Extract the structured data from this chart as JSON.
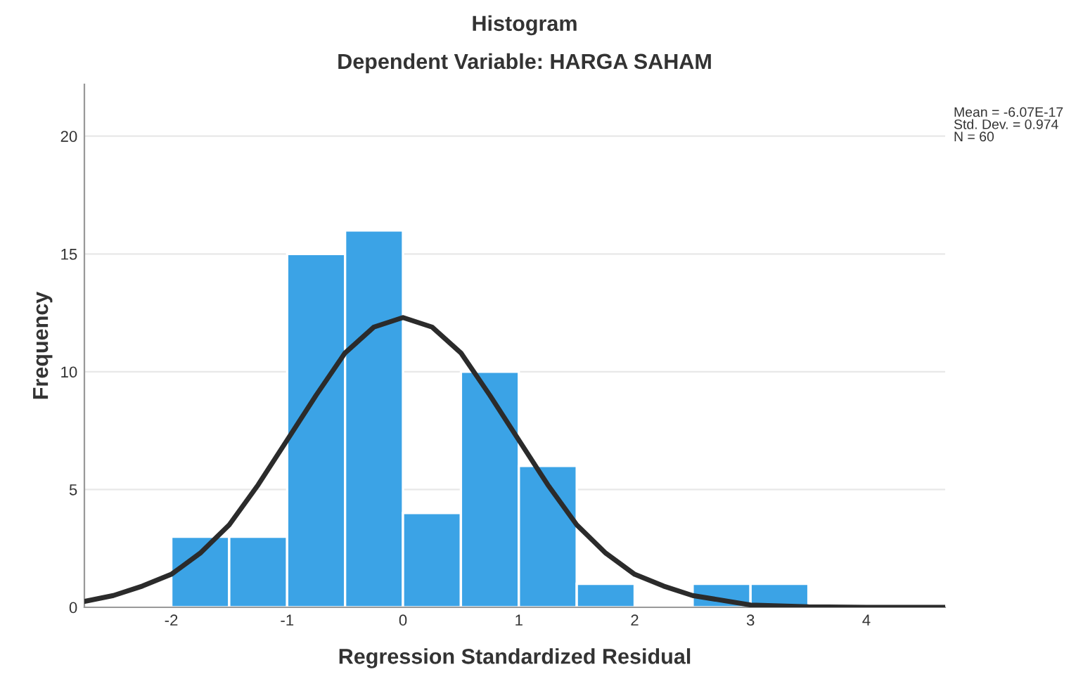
{
  "chart_data": {
    "type": "histogram",
    "title": "Histogram",
    "subtitle": "Dependent Variable: HARGA SAHAM",
    "xlabel": "Regression Standardized Residual",
    "ylabel": "Frequency",
    "annotations": [
      "Mean = -6.07E-17\nStd. Dev. = 0.974\nN = 60"
    ],
    "bins": [
      -2,
      -1.5,
      -1,
      -0.5,
      0,
      0.5,
      1,
      1.5,
      2,
      2.5,
      3,
      3.5
    ],
    "values": [
      3,
      3,
      15,
      16,
      4,
      10,
      6,
      1,
      0,
      1,
      1
    ],
    "color": "#3ba3e6",
    "series": [
      {
        "type": "line",
        "color": "#2b2b2b",
        "x": [
          -2.75,
          -2.5,
          -2.25,
          -2,
          -1.75,
          -1.5,
          -1.25,
          -1,
          -0.75,
          -0.5,
          -0.25,
          0,
          0.25,
          0.5,
          0.75,
          1,
          1.25,
          1.5,
          1.75,
          2,
          2.25,
          2.5,
          3,
          3.5,
          4,
          4.68
        ],
        "values": [
          0.25,
          0.5,
          0.9,
          1.4,
          2.3,
          3.5,
          5.2,
          7.1,
          9.0,
          10.8,
          11.9,
          12.3,
          11.9,
          10.8,
          9.0,
          7.1,
          5.2,
          3.5,
          2.3,
          1.4,
          0.9,
          0.5,
          0.1,
          0.02,
          0,
          0
        ]
      }
    ],
    "xlim": [
      -2.75,
      4.68
    ],
    "ylim": [
      0,
      22.2
    ],
    "xticks": [
      -2,
      -1,
      0,
      1,
      2,
      3,
      4
    ],
    "yticks": [
      0,
      5,
      10,
      15,
      20
    ],
    "grid": "y"
  }
}
